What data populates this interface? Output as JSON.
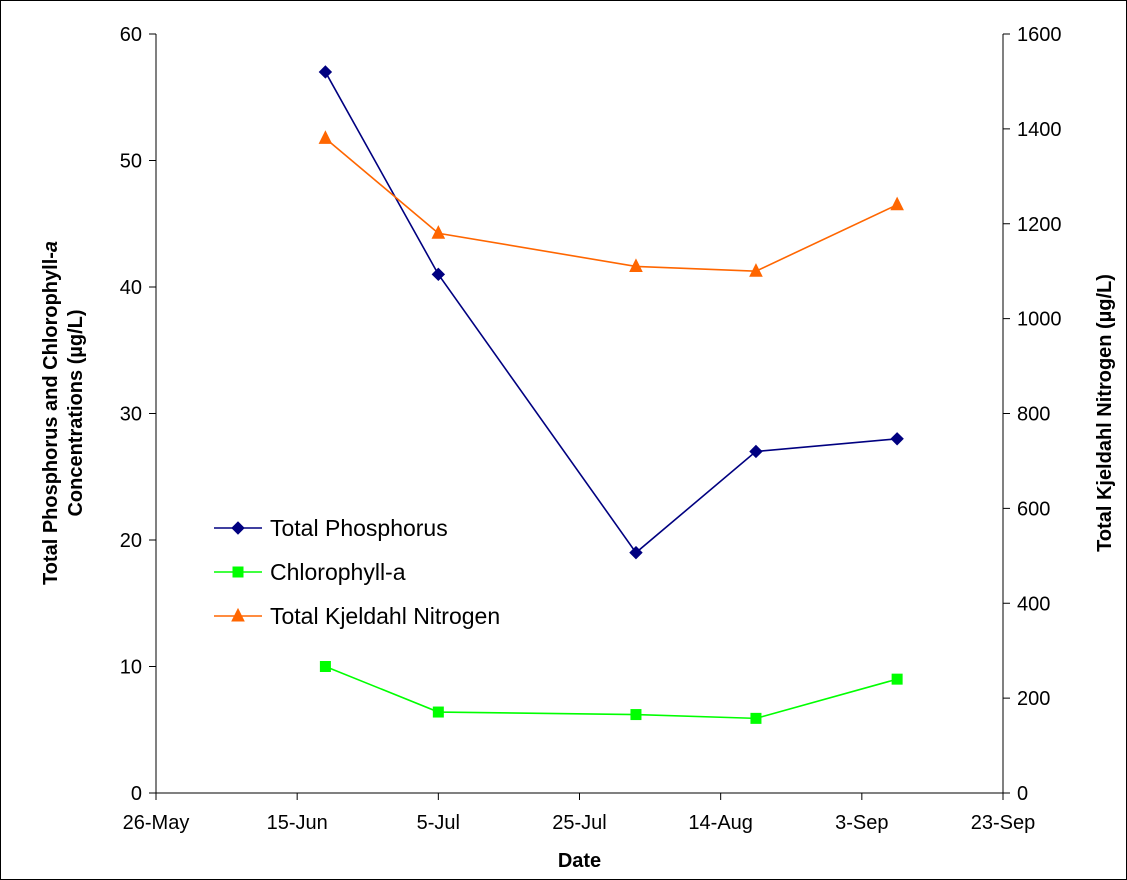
{
  "chart_data": {
    "type": "line",
    "xlabel": "Date",
    "ylabel_left_parts": [
      "Total Phosphorus and Chlorophyll-",
      "a",
      "Concentrations (µg/L)"
    ],
    "ylabel_right": "Total Kjeldahl Nitrogen (µg/L)",
    "x_ticks": [
      "26-May",
      "15-Jun",
      "5-Jul",
      "25-Jul",
      "14-Aug",
      "3-Sep",
      "23-Sep"
    ],
    "xlim": [
      "26-May",
      "23-Sep"
    ],
    "ylim_left": [
      0,
      60
    ],
    "ylim_right": [
      0,
      1600
    ],
    "y_ticks_left": [
      "0",
      "10",
      "20",
      "30",
      "40",
      "50",
      "60"
    ],
    "y_ticks_right": [
      "0",
      "200",
      "400",
      "600",
      "800",
      "1000",
      "1200",
      "1400",
      "1600"
    ],
    "grid": false,
    "legend_position": "center-left",
    "series": [
      {
        "name": "Total Phosphorus",
        "axis": "left",
        "color": "#000080",
        "marker": "diamond",
        "x": [
          "19-Jun",
          "5-Jul",
          "2-Aug",
          "19-Aug",
          "8-Sep"
        ],
        "values": [
          57,
          41,
          19,
          27,
          28
        ]
      },
      {
        "name": "Chlorophyll-a",
        "axis": "left",
        "color": "#00ff00",
        "marker": "square",
        "x": [
          "19-Jun",
          "5-Jul",
          "2-Aug",
          "19-Aug",
          "8-Sep"
        ],
        "values": [
          10,
          6.4,
          6.2,
          5.9,
          9
        ]
      },
      {
        "name": "Total Kjeldahl Nitrogen",
        "axis": "right",
        "color": "#ff6600",
        "marker": "triangle",
        "x": [
          "19-Jun",
          "5-Jul",
          "2-Aug",
          "19-Aug",
          "8-Sep"
        ],
        "values": [
          1380,
          1180,
          1110,
          1100,
          1240
        ]
      }
    ]
  }
}
